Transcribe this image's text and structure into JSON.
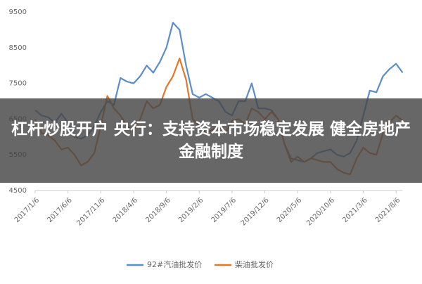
{
  "chart_data": {
    "type": "line",
    "categories": [
      "2017/1/6",
      null,
      null,
      null,
      null,
      "2017/6/6",
      null,
      null,
      null,
      null,
      "2017/11/6",
      null,
      null,
      null,
      null,
      "2018/4/6",
      null,
      null,
      null,
      null,
      "2018/9/6",
      null,
      null,
      null,
      null,
      "2019/2/6",
      null,
      null,
      null,
      null,
      "2019/7/6",
      null,
      null,
      null,
      null,
      "2019/12/6",
      null,
      null,
      null,
      null,
      "2020/5/6",
      null,
      null,
      null,
      null,
      "2020/10/6",
      null,
      null,
      null,
      null,
      "2021/3/6",
      null,
      null,
      null,
      null,
      "2021/8/6",
      null
    ],
    "series": [
      {
        "name": "92#汽油批发价",
        "color": "#5b8ec8",
        "values": [
          6750,
          6600,
          6550,
          6400,
          6650,
          6400,
          6000,
          5950,
          6050,
          6300,
          6700,
          7000,
          6900,
          7650,
          7550,
          7500,
          7700,
          8000,
          7800,
          8100,
          8500,
          9200,
          9000,
          8000,
          7200,
          7100,
          7200,
          7100,
          7000,
          6700,
          6600,
          7000,
          7000,
          7500,
          6800,
          6800,
          6750,
          6500,
          5800,
          5400,
          5350,
          5300,
          5400,
          5550,
          5600,
          5650,
          5500,
          5450,
          5550,
          5900,
          6600,
          7300,
          7250,
          7700,
          7900,
          8050,
          7800
        ]
      },
      {
        "name": "柴油批发价",
        "color": "#e0782a",
        "values": [
          6500,
          6100,
          6050,
          5900,
          5650,
          5700,
          5500,
          5200,
          5300,
          5550,
          6300,
          7150,
          6800,
          6600,
          6300,
          6200,
          6500,
          7000,
          6800,
          6900,
          7400,
          7700,
          8200,
          7600,
          6500,
          6300,
          6100,
          6200,
          6300,
          6100,
          6450,
          6500,
          6350,
          6800,
          6700,
          6500,
          6700,
          6500,
          5800,
          5300,
          5450,
          5300,
          5400,
          5350,
          5300,
          5300,
          5100,
          5000,
          4950,
          5400,
          5700,
          5550,
          5500,
          6100,
          6400,
          6600,
          6450
        ]
      }
    ],
    "ylim": [
      4500,
      9500
    ],
    "yticks": [
      4500,
      5500,
      6500,
      7500,
      8500,
      9500
    ],
    "grid": false,
    "legend": "bottom",
    "annotation": "杠杆炒股开户 央行：支持资本市场稳定发展 健全房地产金融制度"
  }
}
